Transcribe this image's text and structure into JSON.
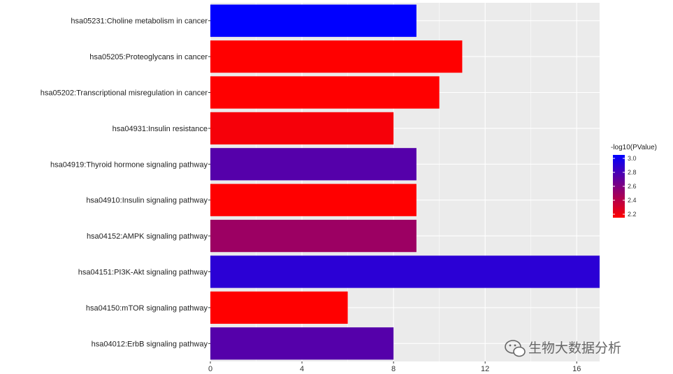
{
  "chart_data": {
    "type": "bar",
    "orientation": "horizontal",
    "categories": [
      "hsa05231:Choline metabolism in cancer",
      "hsa05205:Proteoglycans in cancer",
      "hsa05202:Transcriptional misregulation in cancer",
      "hsa04931:Insulin resistance",
      "hsa04919:Thyroid hormone signaling pathway",
      "hsa04910:Insulin signaling pathway",
      "hsa04152:AMPK signaling pathway",
      "hsa04151:PI3K-Akt signaling pathway",
      "hsa04150:mTOR signaling pathway",
      "hsa04012:ErbB signaling pathway"
    ],
    "values": [
      9,
      11,
      10,
      8,
      9,
      9,
      9,
      17,
      6,
      8
    ],
    "color_values": [
      3.05,
      2.15,
      2.15,
      2.18,
      2.75,
      2.15,
      2.5,
      2.9,
      2.15,
      2.75
    ],
    "x_ticks": [
      "0",
      "4",
      "8",
      "12",
      "16"
    ],
    "x_tick_values": [
      0,
      4,
      8,
      12,
      16
    ],
    "xlim": [
      0,
      17
    ],
    "grid": true,
    "legend": {
      "title": "-log10(PValue)",
      "placement": "right",
      "ticks": [
        "3.0",
        "2.8",
        "2.6",
        "2.4",
        "2.2"
      ],
      "tick_values": [
        3.0,
        2.8,
        2.6,
        2.4,
        2.2
      ],
      "range": [
        2.15,
        3.05
      ],
      "color_low": "#ff0000",
      "color_high": "#0000ff"
    }
  },
  "watermark": {
    "text": "生物大数据分析",
    "icon": "wechat-icon"
  },
  "colors": {
    "panel_bg": "#ebebeb",
    "grid": "#ffffff"
  }
}
